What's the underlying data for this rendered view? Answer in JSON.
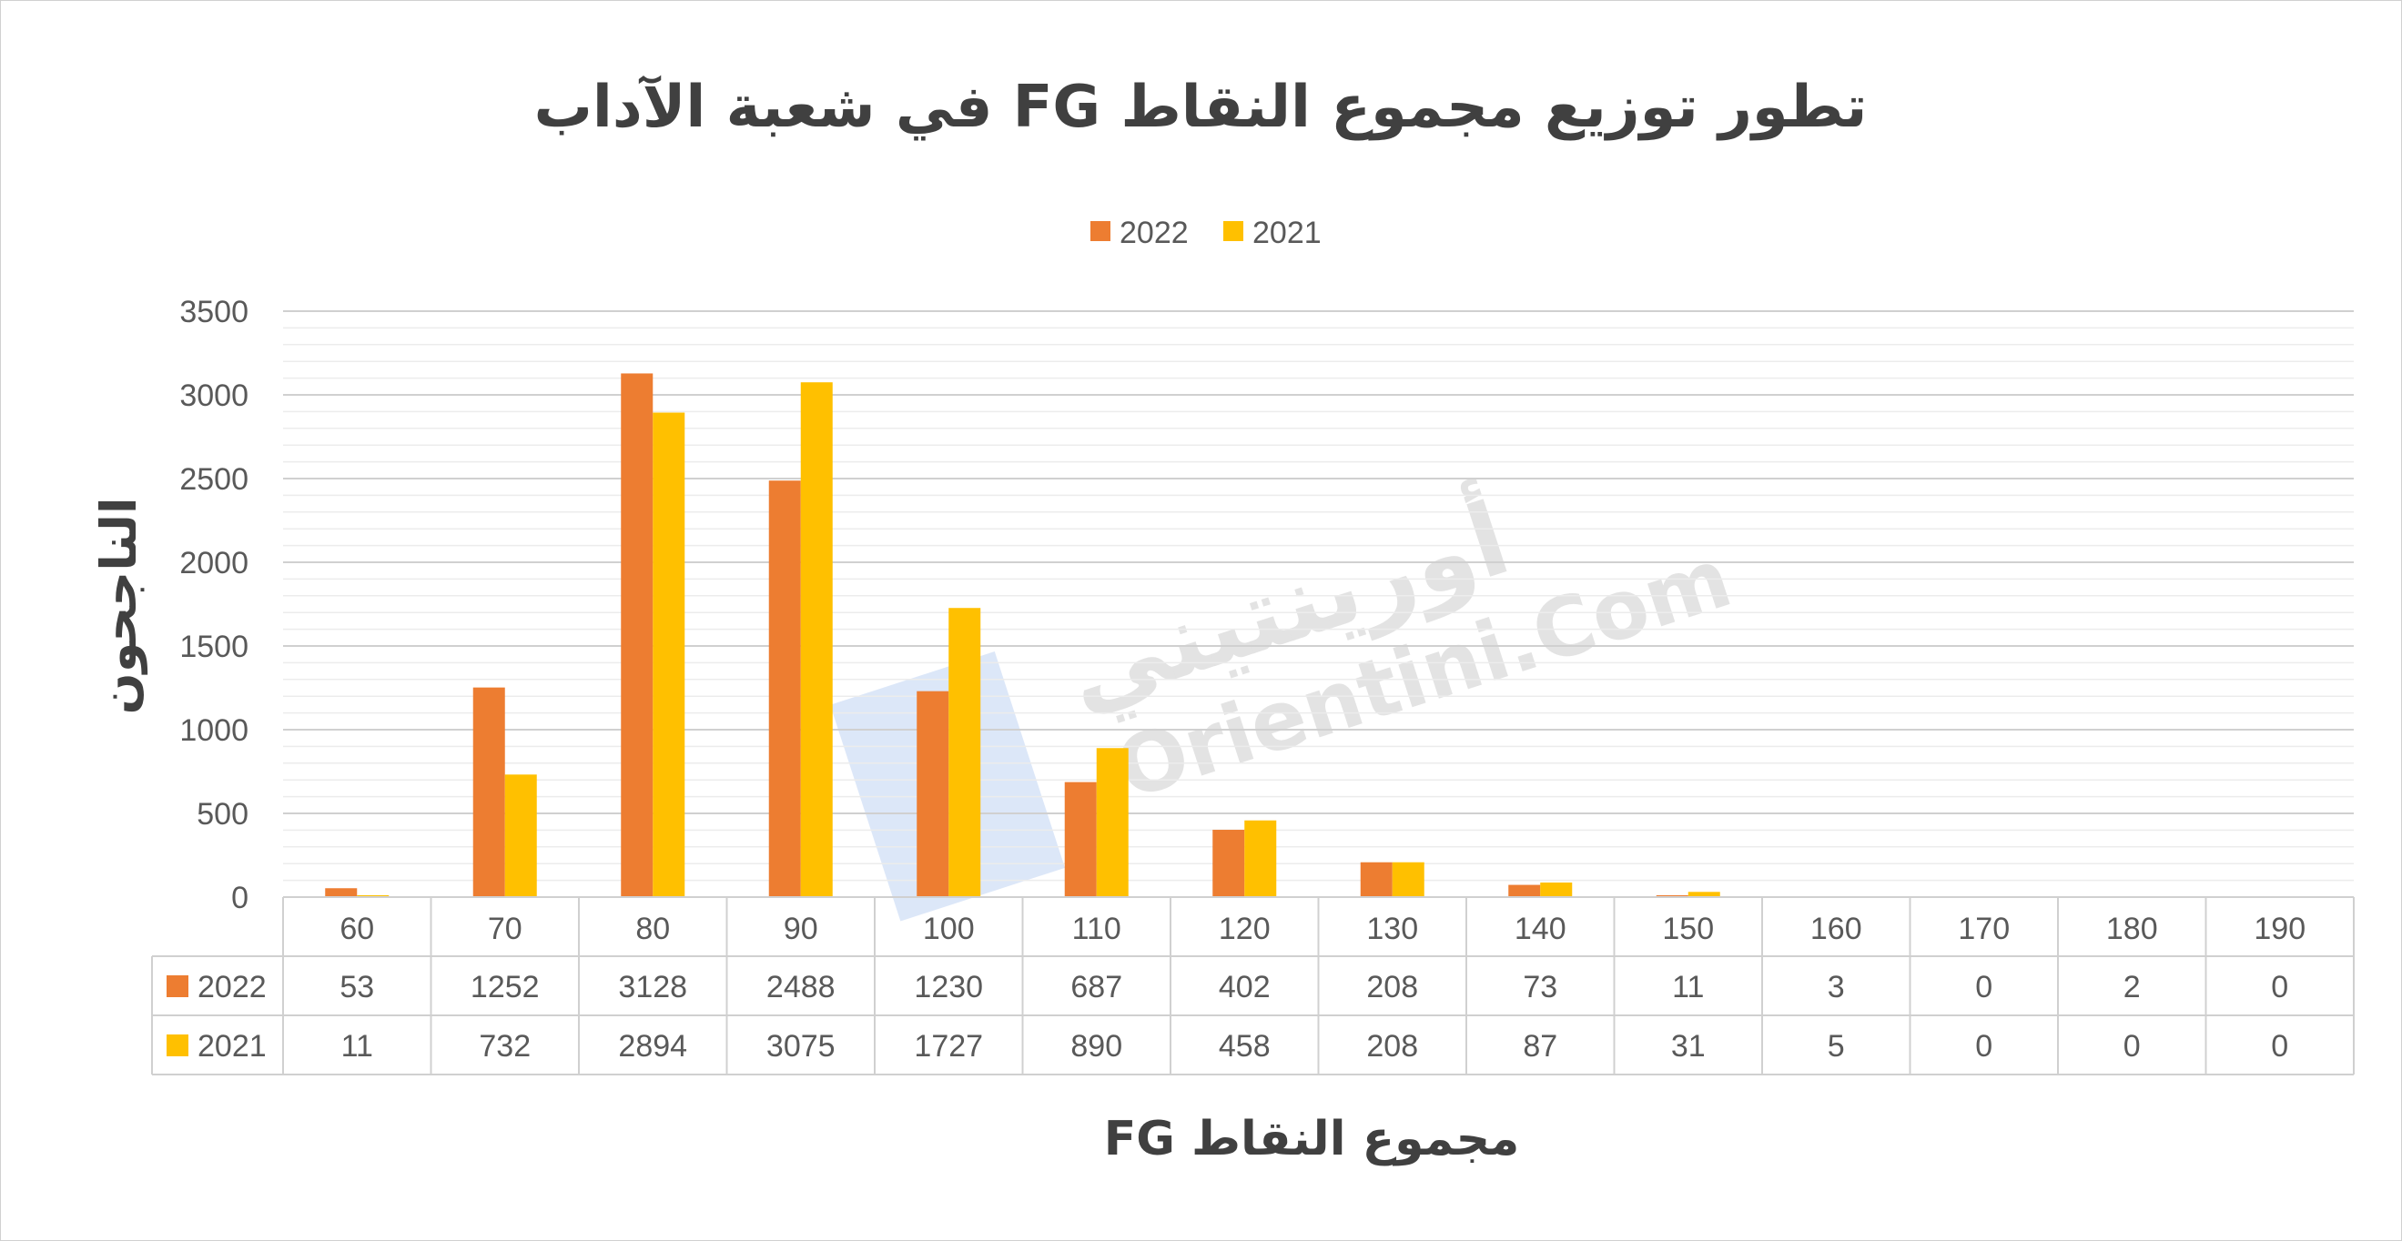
{
  "chart_data": {
    "type": "bar",
    "title": "تطور توزيع مجموع النقاط FG في شعبة الآداب",
    "xlabel": "مجموع النقاط FG",
    "ylabel": "الناجحون",
    "categories": [
      "60",
      "70",
      "80",
      "90",
      "100",
      "110",
      "120",
      "130",
      "140",
      "150",
      "160",
      "170",
      "180",
      "190"
    ],
    "series": [
      {
        "name": "2022",
        "color": "#ED7D31",
        "values": [
          53,
          1252,
          3128,
          2488,
          1230,
          687,
          402,
          208,
          73,
          11,
          3,
          0,
          2,
          0
        ]
      },
      {
        "name": "2021",
        "color": "#FFC000",
        "values": [
          11,
          732,
          2894,
          3075,
          1727,
          890,
          458,
          208,
          87,
          31,
          5,
          0,
          0,
          0
        ]
      }
    ],
    "ylim": [
      0,
      3500
    ],
    "yticks": [
      "0",
      "500",
      "1000",
      "1500",
      "2000",
      "2500",
      "3000",
      "3500"
    ],
    "grid": true,
    "legend": "top-center",
    "data_table": true
  },
  "watermark": {
    "text_ar": "أورينتيني",
    "text_en": "Orientini.Com"
  }
}
